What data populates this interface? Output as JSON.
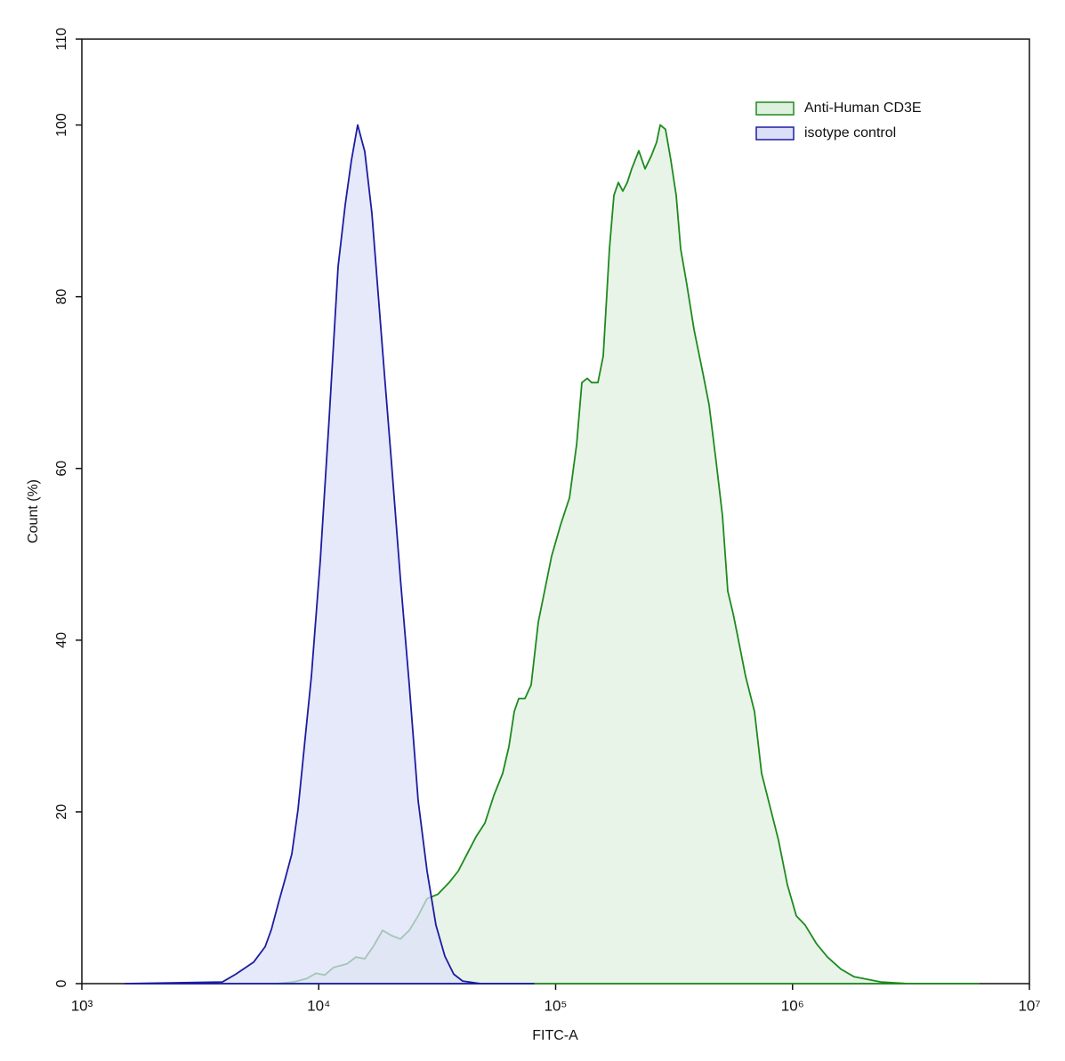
{
  "chart_data": {
    "type": "area",
    "xlabel": "FITC-A",
    "ylabel": "Count  (%)",
    "xscale": "log",
    "xlim": [
      1000,
      10000000
    ],
    "xticks": [
      {
        "value": 1000,
        "label": "10³"
      },
      {
        "value": 10000,
        "label": "10⁴"
      },
      {
        "value": 100000,
        "label": "10⁵"
      },
      {
        "value": 1000000,
        "label": "10⁶"
      },
      {
        "value": 10000000,
        "label": "10⁷"
      }
    ],
    "ylim": [
      0,
      110
    ],
    "yticks": [
      0,
      20,
      40,
      60,
      80,
      100,
      110
    ],
    "legend": "upper right",
    "series": [
      {
        "name": "Anti-Human CD3E",
        "color": "#1e8a1e",
        "fill": "#dff0df",
        "x": [
          6590,
          7834,
          8919,
          9723,
          10600,
          11560,
          13160,
          14350,
          15650,
          17060,
          18600,
          20280,
          22110,
          24110,
          26280,
          28670,
          31800,
          35580,
          38800,
          42300,
          46110,
          50280,
          54830,
          59780,
          63500,
          66900,
          69860,
          74200,
          78820,
          84500,
          90550,
          96180,
          104900,
          114400,
          122600,
          129100,
          135960,
          141960,
          150800,
          158800,
          168800,
          176200,
          184000,
          192100,
          200600,
          209500,
          224500,
          238500,
          253400,
          266900,
          276300,
          290900,
          306400,
          322800,
          337100,
          358100,
          383700,
          418400,
          444600,
          476400,
          506000,
          533200,
          561500,
          591300,
          633800,
          690900,
          740500,
          800600,
          872800,
          951500,
          1037000,
          1131000,
          1266000,
          1404000,
          1599000,
          1820000,
          2360000,
          3058000,
          6108000
        ],
        "values": [
          0,
          0.2,
          0.6,
          1.2,
          1.0,
          1.9,
          2.3,
          3.1,
          2.9,
          4.4,
          6.2,
          5.6,
          5.2,
          6.2,
          7.9,
          9.9,
          10.4,
          11.8,
          13.1,
          15.1,
          17.1,
          18.7,
          21.9,
          24.5,
          27.6,
          31.7,
          33.2,
          33.2,
          34.8,
          42.1,
          46.2,
          49.8,
          53.4,
          56.6,
          62.8,
          70.0,
          70.5,
          70.0,
          70.0,
          73.1,
          85.6,
          91.8,
          93.3,
          92.3,
          93.3,
          94.9,
          97.0,
          94.9,
          96.4,
          98.0,
          100,
          99.5,
          95.9,
          91.8,
          85.6,
          81.4,
          76.2,
          71.1,
          67.4,
          60.7,
          54.5,
          45.7,
          43.1,
          40.0,
          35.8,
          31.7,
          24.5,
          20.8,
          16.7,
          11.5,
          7.9,
          6.8,
          4.6,
          3.1,
          1.7,
          0.8,
          0.2,
          0,
          0
        ]
      },
      {
        "name": "isotype control",
        "color": "#1c1ca0",
        "fill": "#dcdff8",
        "x": [
          1514,
          3922,
          4465,
          5308,
          5939,
          6310,
          6761,
          7183,
          7700,
          8177,
          8763,
          9311,
          10150,
          11070,
          12070,
          12930,
          13740,
          14600,
          15650,
          16770,
          17810,
          18920,
          20280,
          22110,
          24110,
          26280,
          28670,
          31250,
          34070,
          37150,
          40510,
          48150,
          80910
        ],
        "values": [
          0,
          0.2,
          1.1,
          2.5,
          4.3,
          6.3,
          9.4,
          12.0,
          15.1,
          20.3,
          28.6,
          35.8,
          49.3,
          65.9,
          83.5,
          90.7,
          95.9,
          100,
          96.9,
          89.7,
          80.4,
          71.1,
          60.7,
          47.2,
          34.8,
          21.3,
          13.1,
          6.8,
          3.2,
          1.1,
          0.3,
          0,
          0
        ]
      }
    ]
  }
}
